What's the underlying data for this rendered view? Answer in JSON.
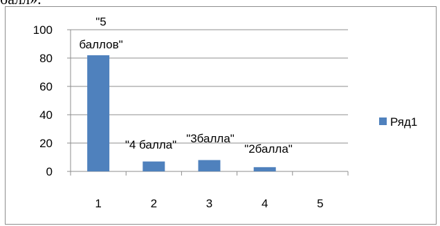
{
  "top_text": "балл».",
  "colors": {
    "bar": "#4f81bd",
    "grid": "#8c8c8c",
    "frame": "#8c8c8c"
  },
  "chart_data": {
    "type": "bar",
    "categories": [
      "1",
      "2",
      "3",
      "4",
      "5"
    ],
    "series": [
      {
        "name": "Ряд1",
        "values": [
          82,
          7,
          8,
          3,
          0
        ]
      }
    ],
    "data_labels": [
      "\"5\nбаллов\"",
      "\"4 балла\"",
      "\"3балла\"",
      "\"2балла\"",
      ""
    ],
    "ylim": [
      0,
      100
    ],
    "yticks": [
      0,
      20,
      40,
      60,
      80,
      100
    ],
    "grid": true,
    "legend": "right",
    "title": "",
    "xlabel": "",
    "ylabel": ""
  }
}
